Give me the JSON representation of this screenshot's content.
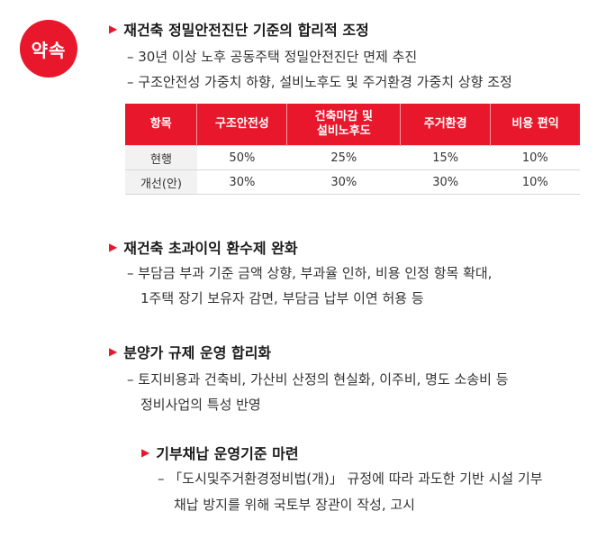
{
  "badge": "약속",
  "section1": {
    "heading": "재건축 정밀안전진단 기준의 합리적 조정",
    "bullets": [
      "– 30년 이상 노후 공동주택 정밀안전진단 면제 추진",
      "– 구조안전성 가중치 하향, 설비노후도 및 주거환경 가중치 상향 조정"
    ],
    "table": {
      "headers": [
        "항목",
        "구조안전성",
        "건축마감 및 설비노후도",
        "주거환경",
        "비용 편익"
      ],
      "rows": [
        [
          "현행",
          "50%",
          "25%",
          "15%",
          "10%"
        ],
        [
          "개선(안)",
          "30%",
          "30%",
          "30%",
          "10%"
        ]
      ]
    }
  },
  "section2": {
    "heading": "재건축 초과이익 환수제 완화",
    "lines": [
      "– 부담금 부과 기준 금액 상향, 부과율 인하, 비용 인정 항목 확대,",
      "1주택 장기 보유자 감면, 부담금 납부 이연 허용 등"
    ]
  },
  "section3": {
    "heading": "분양가 규제 운영 합리화",
    "lines": [
      "– 토지비용과 건축비, 가산비 산정의 현실화, 이주비, 명도 소송비 등",
      "정비사업의 특성 반영"
    ]
  },
  "section4": {
    "heading": "기부채납 운영기준 마련",
    "lines": [
      "– 「도시및주거환경정비법(개)」 규정에 따라 과도한 기반 시설 기부",
      "채납 방지를 위해 국토부 장관이 작성, 고시"
    ]
  }
}
